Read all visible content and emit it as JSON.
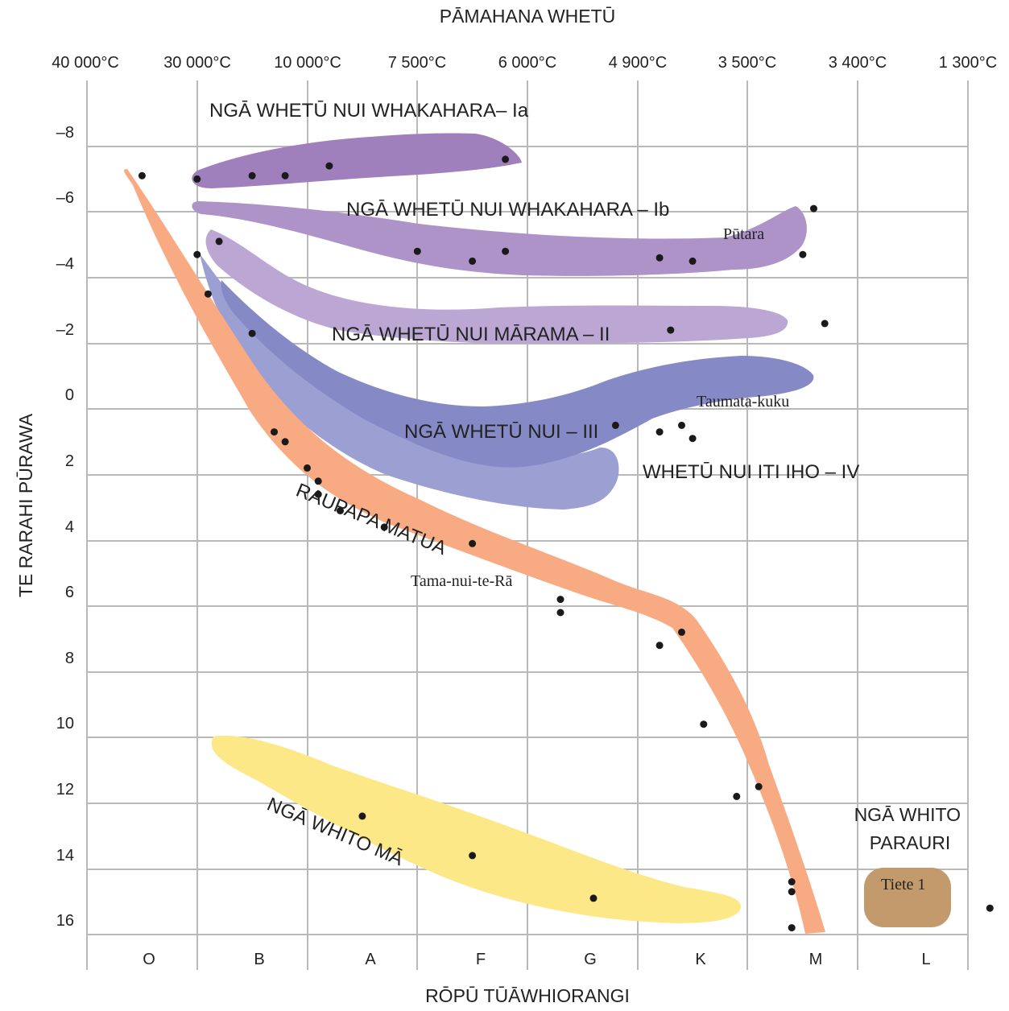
{
  "chart_data": {
    "type": "scatter",
    "title": "PĀMAHANA WHETŪ",
    "xlabel": "RŌPŪ TŪĀWHIORANGI",
    "ylabel": "TE RARAHI PŪRAWA",
    "categories": [
      "O",
      "B",
      "A",
      "F",
      "G",
      "K",
      "M",
      "L"
    ],
    "temperatures": [
      "40 000°C",
      "30 000°C",
      "10 000°C",
      "7 500°C",
      "6 000°C",
      "4 900°C",
      "3 500°C",
      "3 400°C",
      "1 300°C"
    ],
    "y_ticks": [
      "–8",
      "–6",
      "–4",
      "–2",
      "0",
      "2",
      "4",
      "6",
      "8",
      "10",
      "12",
      "14",
      "16"
    ],
    "ylim": [
      -8.8,
      17.6
    ],
    "y_inverted": true,
    "grid": true,
    "regions": [
      {
        "label": "NGĀ WHETŪ NUI WHAKAHARA– Ia",
        "color": "#a07fbd"
      },
      {
        "label": "NGĀ WHETŪ NUI WHAKAHARA – Ib",
        "color": "#ad93c8"
      },
      {
        "label": "NGĀ WHETŪ NUI MĀRAMA – II",
        "color": "#bba6d4"
      },
      {
        "label": "NGĀ WHETŪ NUI – III",
        "color": "#8589c6"
      },
      {
        "label": "WHETŪ NUI ITI IHO – IV",
        "color": "#9c9fd2"
      },
      {
        "label": "RAUPAPA MATUA",
        "color": "#f8ab82"
      },
      {
        "label": "NGĀ WHITO MĀ",
        "color": "#fde888"
      },
      {
        "label": "NGĀ WHITO PARAURI",
        "color": "#c29a6b"
      }
    ],
    "star_labels": [
      {
        "name": "Pūtara",
        "x": 6.45,
        "y": -4.5
      },
      {
        "name": "Taumata-kuku",
        "x": 6.85,
        "y": 0.5
      },
      {
        "name": "Tama-nui-te-Rā",
        "x": 4.4,
        "y": 5.3
      },
      {
        "name": "Tiete 1",
        "x": 8.2,
        "y": 14.8
      }
    ],
    "points": [
      {
        "x": 0.5,
        "y": -7.1
      },
      {
        "x": 1.0,
        "y": -7.0
      },
      {
        "x": 1.5,
        "y": -7.1
      },
      {
        "x": 1.8,
        "y": -7.1
      },
      {
        "x": 2.2,
        "y": -7.4
      },
      {
        "x": 3.8,
        "y": -7.6
      },
      {
        "x": 6.6,
        "y": -6.1
      },
      {
        "x": 3.0,
        "y": -4.8
      },
      {
        "x": 3.5,
        "y": -4.5
      },
      {
        "x": 3.8,
        "y": -4.8
      },
      {
        "x": 5.2,
        "y": -4.6
      },
      {
        "x": 5.5,
        "y": -4.5
      },
      {
        "x": 6.5,
        "y": -4.7
      },
      {
        "x": 1.2,
        "y": -5.1
      },
      {
        "x": 5.3,
        "y": -2.4
      },
      {
        "x": 6.7,
        "y": -2.6
      },
      {
        "x": 1.5,
        "y": -2.3
      },
      {
        "x": 4.8,
        "y": 0.5
      },
      {
        "x": 5.2,
        "y": 0.7
      },
      {
        "x": 5.4,
        "y": 0.5
      },
      {
        "x": 5.5,
        "y": 0.9
      },
      {
        "x": 1.0,
        "y": -4.7
      },
      {
        "x": 1.1,
        "y": -3.5
      },
      {
        "x": 1.7,
        "y": 0.7
      },
      {
        "x": 1.8,
        "y": 1.0
      },
      {
        "x": 2.0,
        "y": 1.8
      },
      {
        "x": 2.1,
        "y": 2.2
      },
      {
        "x": 2.1,
        "y": 2.6
      },
      {
        "x": 2.3,
        "y": 3.1
      },
      {
        "x": 2.7,
        "y": 3.6
      },
      {
        "x": 3.5,
        "y": 4.1
      },
      {
        "x": 4.3,
        "y": 5.8
      },
      {
        "x": 4.3,
        "y": 6.2
      },
      {
        "x": 5.2,
        "y": 7.2
      },
      {
        "x": 5.4,
        "y": 6.8
      },
      {
        "x": 5.6,
        "y": 9.6
      },
      {
        "x": 5.9,
        "y": 11.8
      },
      {
        "x": 6.1,
        "y": 11.5
      },
      {
        "x": 6.4,
        "y": 14.4
      },
      {
        "x": 6.4,
        "y": 14.7
      },
      {
        "x": 6.4,
        "y": 15.8
      },
      {
        "x": 2.5,
        "y": 12.4
      },
      {
        "x": 3.5,
        "y": 13.6
      },
      {
        "x": 4.6,
        "y": 14.9
      },
      {
        "x": 8.2,
        "y": 15.2
      }
    ]
  }
}
